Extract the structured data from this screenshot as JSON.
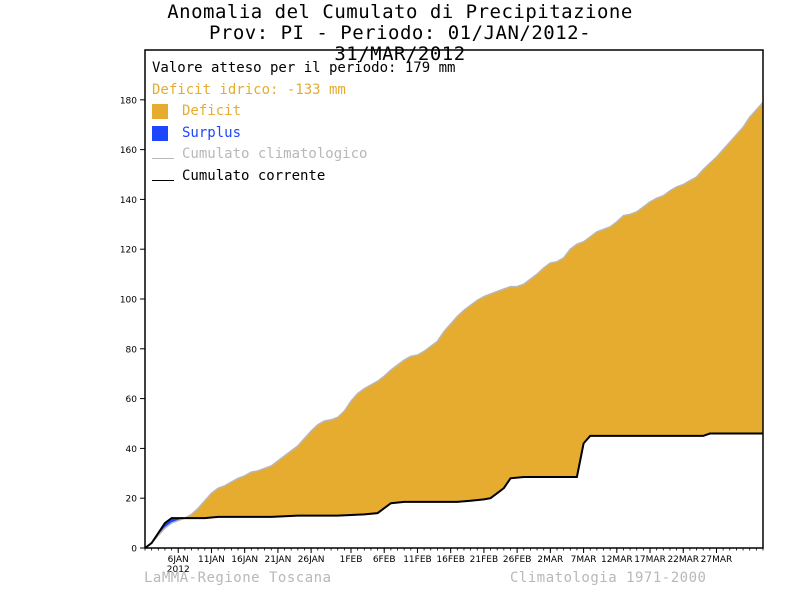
{
  "title_line1": "Anomalia del Cumulato di Precipitazione",
  "title_line2": "Prov: PI - Periodo: 01/JAN/2012-31/MAR/2012",
  "legend": {
    "expected_text": "Valore atteso per il periodo: 179 mm",
    "deficit_text": "Deficit idrico: -133 mm",
    "deficit_label": "Deficit",
    "surplus_label": "Surplus",
    "climatological_label": "Cumulato climatologico",
    "current_label": "Cumulato corrente"
  },
  "footer": {
    "left": "LaMMA-Regione Toscana",
    "right": "Climatologia 1971-2000"
  },
  "colors": {
    "deficit": "#e5ac30",
    "surplus": "#1e46ff",
    "climatological": "#b8b8b8",
    "current": "#000000",
    "deficit_text": "#e5ac30",
    "surplus_text": "#1e46ff"
  },
  "chart_data": {
    "type": "area",
    "title": "Anomalia del Cumulato di Precipitazione",
    "subtitle": "Prov: PI - Periodo: 01/JAN/2012-31/MAR/2012",
    "xlabel": "",
    "ylabel": "",
    "ylim": [
      0,
      200
    ],
    "yticks": [
      0,
      20,
      40,
      60,
      80,
      100,
      120,
      140,
      160,
      180
    ],
    "x_range_days": [
      1,
      91
    ],
    "x_ticks": [
      {
        "day": 6,
        "label": "6JAN"
      },
      {
        "day": 11,
        "label": "11JAN"
      },
      {
        "day": 16,
        "label": "16JAN"
      },
      {
        "day": 21,
        "label": "21JAN"
      },
      {
        "day": 26,
        "label": "26JAN"
      },
      {
        "day": 32,
        "label": "1FEB"
      },
      {
        "day": 37,
        "label": "6FEB"
      },
      {
        "day": 42,
        "label": "11FEB"
      },
      {
        "day": 47,
        "label": "16FEB"
      },
      {
        "day": 52,
        "label": "21FEB"
      },
      {
        "day": 57,
        "label": "26FEB"
      },
      {
        "day": 62,
        "label": "2MAR"
      },
      {
        "day": 67,
        "label": "7MAR"
      },
      {
        "day": 72,
        "label": "12MAR"
      },
      {
        "day": 77,
        "label": "17MAR"
      },
      {
        "day": 82,
        "label": "22MAR"
      },
      {
        "day": 87,
        "label": "27MAR"
      }
    ],
    "year_label": "2012",
    "grid": false,
    "series": [
      {
        "name": "Cumulato climatologico",
        "points": [
          [
            1,
            0
          ],
          [
            2,
            2
          ],
          [
            3,
            5
          ],
          [
            4,
            8
          ],
          [
            5,
            10
          ],
          [
            6,
            11
          ],
          [
            7,
            12
          ],
          [
            8,
            13.5
          ],
          [
            9,
            16
          ],
          [
            10,
            19
          ],
          [
            11,
            22
          ],
          [
            12,
            24
          ],
          [
            13,
            25
          ],
          [
            14,
            26.5
          ],
          [
            15,
            28
          ],
          [
            16,
            29
          ],
          [
            17,
            30.5
          ],
          [
            18,
            31
          ],
          [
            19,
            32
          ],
          [
            20,
            33
          ],
          [
            21,
            35
          ],
          [
            22,
            37
          ],
          [
            23,
            39
          ],
          [
            24,
            41
          ],
          [
            25,
            44
          ],
          [
            26,
            47
          ],
          [
            27,
            49.5
          ],
          [
            28,
            51
          ],
          [
            29,
            51.5
          ],
          [
            30,
            52.5
          ],
          [
            31,
            55
          ],
          [
            32,
            59
          ],
          [
            33,
            62
          ],
          [
            34,
            64
          ],
          [
            35,
            65.5
          ],
          [
            36,
            67
          ],
          [
            37,
            69
          ],
          [
            38,
            71.5
          ],
          [
            39,
            73.5
          ],
          [
            40,
            75.5
          ],
          [
            41,
            77
          ],
          [
            42,
            77.5
          ],
          [
            43,
            79
          ],
          [
            44,
            81
          ],
          [
            45,
            83
          ],
          [
            46,
            87
          ],
          [
            47,
            90
          ],
          [
            48,
            93
          ],
          [
            49,
            95.5
          ],
          [
            50,
            97.5
          ],
          [
            51,
            99.5
          ],
          [
            52,
            101
          ],
          [
            53,
            102
          ],
          [
            54,
            103
          ],
          [
            55,
            104
          ],
          [
            56,
            105
          ],
          [
            57,
            105
          ],
          [
            58,
            106
          ],
          [
            59,
            108
          ],
          [
            60,
            110
          ],
          [
            61,
            112.5
          ],
          [
            62,
            114.5
          ],
          [
            63,
            115
          ],
          [
            64,
            116.5
          ],
          [
            65,
            120
          ],
          [
            66,
            122
          ],
          [
            67,
            123
          ],
          [
            68,
            125
          ],
          [
            69,
            127
          ],
          [
            70,
            128
          ],
          [
            71,
            129
          ],
          [
            72,
            131
          ],
          [
            73,
            133.5
          ],
          [
            74,
            134
          ],
          [
            75,
            135
          ],
          [
            76,
            137
          ],
          [
            77,
            139
          ],
          [
            78,
            140.5
          ],
          [
            79,
            141.5
          ],
          [
            80,
            143.5
          ],
          [
            81,
            145
          ],
          [
            82,
            146
          ],
          [
            83,
            147.5
          ],
          [
            84,
            149
          ],
          [
            85,
            152
          ],
          [
            86,
            154.5
          ],
          [
            87,
            157
          ],
          [
            88,
            160
          ],
          [
            89,
            163
          ],
          [
            90,
            166
          ],
          [
            91,
            169
          ],
          [
            92,
            173
          ],
          [
            93,
            176
          ],
          [
            94,
            179
          ]
        ]
      },
      {
        "name": "Cumulato corrente",
        "points": [
          [
            1,
            0
          ],
          [
            2,
            2
          ],
          [
            3,
            6
          ],
          [
            4,
            10
          ],
          [
            5,
            12
          ],
          [
            6,
            12
          ],
          [
            8,
            12
          ],
          [
            10,
            12
          ],
          [
            12,
            12.5
          ],
          [
            20,
            12.5
          ],
          [
            24,
            13
          ],
          [
            30,
            13
          ],
          [
            34,
            13.5
          ],
          [
            36,
            14
          ],
          [
            37,
            16
          ],
          [
            38,
            18
          ],
          [
            40,
            18.5
          ],
          [
            48,
            18.5
          ],
          [
            50,
            19
          ],
          [
            52,
            19.5
          ],
          [
            53,
            20
          ],
          [
            54,
            22
          ],
          [
            55,
            24
          ],
          [
            56,
            28
          ],
          [
            58,
            28.5
          ],
          [
            65,
            28.5
          ],
          [
            66,
            28.5
          ],
          [
            67,
            42
          ],
          [
            68,
            45
          ],
          [
            70,
            45
          ],
          [
            85,
            45
          ],
          [
            86,
            46
          ],
          [
            94,
            46
          ]
        ]
      }
    ]
  }
}
